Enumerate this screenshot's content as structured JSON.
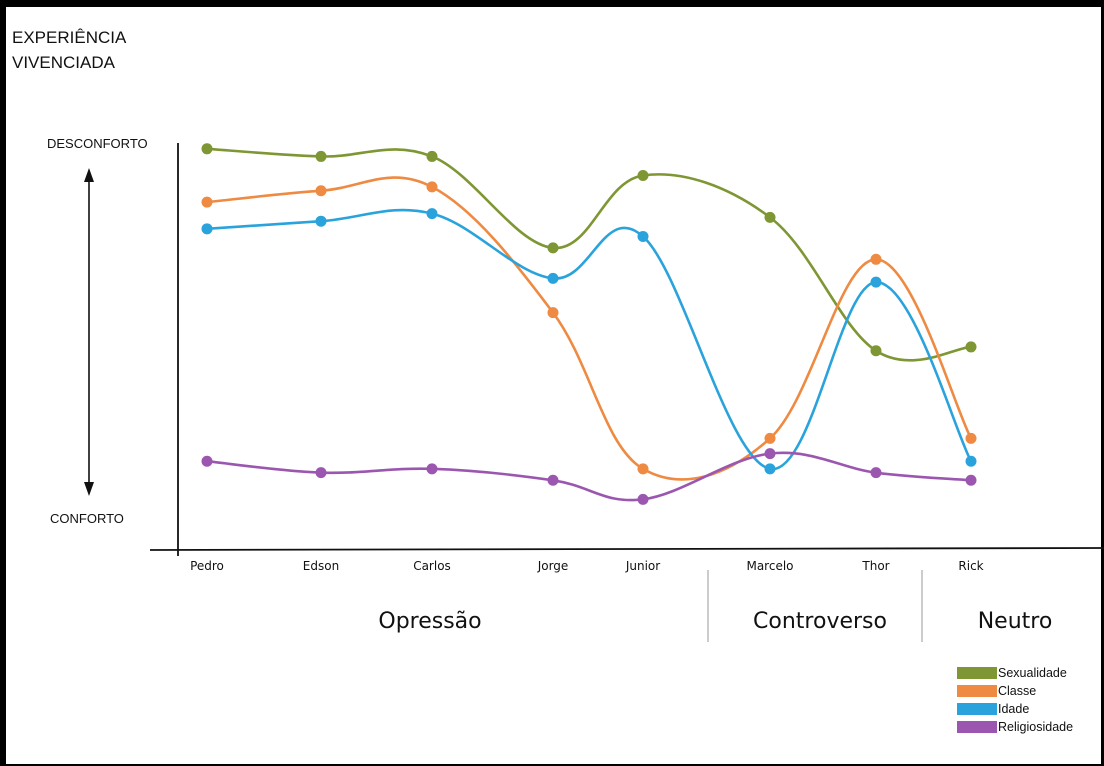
{
  "chart_data": {
    "type": "line",
    "title": "",
    "ylabel": "EXPERIÊNCIA VIVENCIADA",
    "y_top_label": "DESCONFORTO",
    "y_bottom_label": "CONFORTO",
    "ylim": [
      0,
      100
    ],
    "categories": [
      "Pedro",
      "Edson",
      "Carlos",
      "Jorge",
      "Junior",
      "Marcelo",
      "Thor",
      "Rick"
    ],
    "groups": [
      {
        "label": "Opressão",
        "from": 0,
        "to": 4
      },
      {
        "label": "Controverso",
        "from": 5,
        "to": 6
      },
      {
        "label": "Neutro",
        "from": 7,
        "to": 7
      }
    ],
    "legend_position": "bottom-right",
    "grid": false,
    "series": [
      {
        "name": "Sexualidade",
        "color": "#7e9633",
        "values": [
          99,
          97,
          97,
          73,
          92,
          81,
          46,
          47
        ]
      },
      {
        "name": "Classe",
        "color": "#ee8a41",
        "values": [
          85,
          88,
          89,
          56,
          15,
          23,
          70,
          23
        ]
      },
      {
        "name": "Idade",
        "color": "#2aa3dc",
        "values": [
          78,
          80,
          82,
          65,
          76,
          15,
          64,
          17
        ]
      },
      {
        "name": "Religiosidade",
        "color": "#9b57b0",
        "values": [
          17,
          14,
          15,
          12,
          7,
          19,
          14,
          12
        ]
      }
    ]
  }
}
